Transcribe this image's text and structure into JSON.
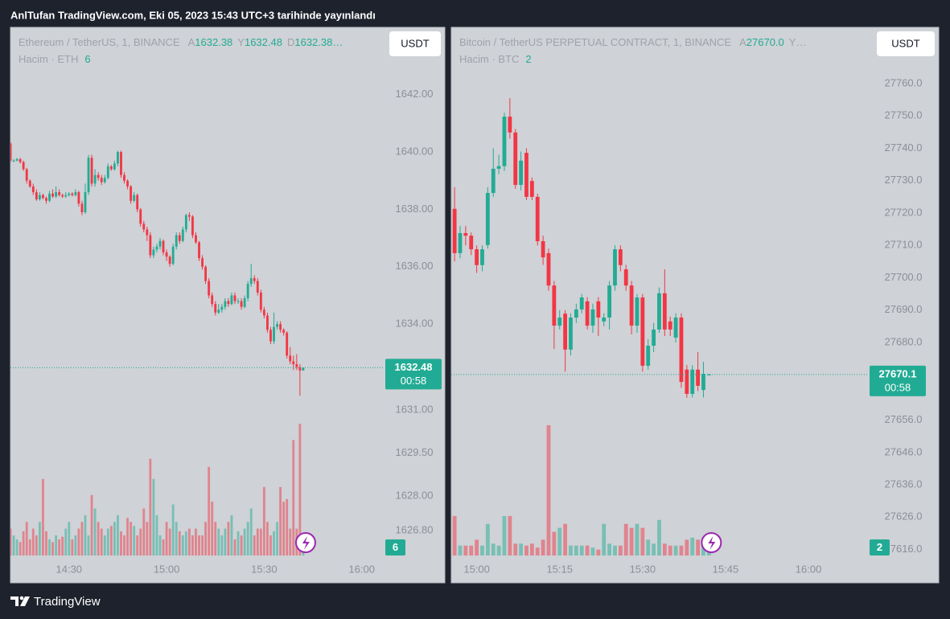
{
  "header": {
    "title": "AnlTufan TradingView.com, Eki 05, 2023 15:43 UTC+3 tarihinde yayınlandı"
  },
  "footer": {
    "brand": "TradingView"
  },
  "chart_data": [
    {
      "type": "candlestick",
      "symbol": "Ethereum / TetherUS, 1, BINANCE",
      "legend": [
        {
          "label": "A",
          "value": "1632.38"
        },
        {
          "label": "Y",
          "value": "1632.48"
        },
        {
          "label": "D",
          "value": "1632.38…"
        }
      ],
      "currency": "USDT",
      "volume_label": "Hacim · ETH",
      "countdown": "00:58",
      "last_price": 1632.48,
      "up_color": "#22ab94",
      "down_color": "#f23645",
      "ylim": [
        1625.9,
        1644.35
      ],
      "yticks": [
        {
          "value": 1642,
          "label": "1642.00"
        },
        {
          "value": 1640,
          "label": "1640.00"
        },
        {
          "value": 1638,
          "label": "1638.00"
        },
        {
          "value": 1636,
          "label": "1636.00"
        },
        {
          "value": 1634,
          "label": "1634.00"
        },
        {
          "value": 1631,
          "label": "1631.00"
        },
        {
          "value": 1629.5,
          "label": "1629.50"
        },
        {
          "value": 1628,
          "label": "1628.00"
        },
        {
          "value": 1626.8,
          "label": "1626.80"
        }
      ],
      "xlim": [
        0,
        115
      ],
      "xticks": [
        {
          "value": 18,
          "label": "14:30"
        },
        {
          "value": 48,
          "label": "15:00"
        },
        {
          "value": 78,
          "label": "15:30"
        },
        {
          "value": 108,
          "label": "16:00"
        }
      ],
      "open": [
        1640.3,
        1639.7,
        1639.7,
        1639.75,
        1639.65,
        1639.4,
        1639.0,
        1638.8,
        1638.6,
        1638.35,
        1638.5,
        1638.4,
        1638.3,
        1638.55,
        1638.45,
        1638.6,
        1638.5,
        1638.45,
        1638.5,
        1638.55,
        1638.5,
        1638.6,
        1638.2,
        1637.9,
        1638.6,
        1639.8,
        1638.9,
        1639.2,
        1639.1,
        1638.95,
        1639.1,
        1639.5,
        1639.4,
        1639.6,
        1640.0,
        1639.2,
        1639.0,
        1638.8,
        1638.3,
        1638.5,
        1638.0,
        1637.5,
        1637.3,
        1637.1,
        1636.4,
        1636.6,
        1636.7,
        1636.9,
        1636.5,
        1636.35,
        1636.1,
        1636.7,
        1637.1,
        1636.9,
        1637.3,
        1637.8,
        1637.75,
        1637.1,
        1636.85,
        1636.3,
        1636.0,
        1635.5,
        1635.0,
        1634.7,
        1634.4,
        1634.5,
        1634.6,
        1634.8,
        1634.7,
        1635.0,
        1634.8,
        1634.8,
        1634.6,
        1634.9,
        1635.4,
        1635.6,
        1635.5,
        1635.1,
        1634.5,
        1634.3,
        1633.8,
        1633.4,
        1633.9,
        1634.0,
        1633.8,
        1633.7,
        1632.9,
        1632.7,
        1632.6,
        1632.5,
        1632.38
      ],
      "high": [
        1640.35,
        1639.75,
        1639.8,
        1639.8,
        1639.7,
        1639.45,
        1639.05,
        1638.9,
        1638.7,
        1638.6,
        1638.55,
        1638.45,
        1638.65,
        1638.7,
        1638.8,
        1638.7,
        1638.55,
        1638.6,
        1638.6,
        1638.6,
        1638.7,
        1638.65,
        1638.3,
        1638.9,
        1639.9,
        1639.9,
        1639.4,
        1639.3,
        1639.2,
        1639.2,
        1639.6,
        1639.55,
        1639.7,
        1640.05,
        1640.05,
        1639.3,
        1639.05,
        1638.85,
        1638.6,
        1638.55,
        1638.05,
        1637.6,
        1637.4,
        1637.2,
        1636.7,
        1636.8,
        1637.0,
        1636.95,
        1636.6,
        1636.4,
        1636.8,
        1637.2,
        1637.2,
        1637.4,
        1637.85,
        1637.9,
        1637.8,
        1637.2,
        1636.9,
        1636.4,
        1636.05,
        1635.6,
        1635.1,
        1634.8,
        1634.7,
        1634.7,
        1634.9,
        1634.9,
        1635.1,
        1635.1,
        1634.9,
        1634.9,
        1635.0,
        1635.5,
        1636.1,
        1635.7,
        1635.6,
        1635.2,
        1634.6,
        1634.4,
        1633.9,
        1634.4,
        1634.1,
        1634.1,
        1633.85,
        1633.75,
        1633.2,
        1632.9,
        1632.95,
        1632.6,
        1632.48
      ],
      "low": [
        1639.65,
        1639.65,
        1639.68,
        1639.6,
        1639.35,
        1638.9,
        1638.75,
        1638.5,
        1638.3,
        1638.3,
        1638.35,
        1638.2,
        1638.25,
        1638.4,
        1638.4,
        1638.45,
        1638.4,
        1638.4,
        1638.45,
        1638.45,
        1638.45,
        1638.1,
        1637.8,
        1637.85,
        1638.5,
        1638.8,
        1638.8,
        1639.0,
        1638.85,
        1638.9,
        1639.05,
        1639.35,
        1639.35,
        1639.5,
        1639.1,
        1638.9,
        1638.7,
        1638.2,
        1638.25,
        1637.9,
        1637.4,
        1637.2,
        1636.9,
        1636.3,
        1636.3,
        1636.5,
        1636.6,
        1636.4,
        1636.2,
        1636.0,
        1636.05,
        1636.6,
        1636.8,
        1636.85,
        1637.2,
        1637.6,
        1637.0,
        1636.8,
        1636.2,
        1635.9,
        1635.4,
        1634.9,
        1634.6,
        1634.3,
        1634.35,
        1634.4,
        1634.5,
        1634.6,
        1634.65,
        1634.7,
        1634.7,
        1634.5,
        1634.55,
        1634.8,
        1635.3,
        1635.4,
        1635.0,
        1634.4,
        1634.2,
        1633.7,
        1633.3,
        1633.3,
        1633.8,
        1633.7,
        1633.6,
        1632.8,
        1632.6,
        1632.4,
        1632.4,
        1631.5,
        1632.38
      ],
      "close": [
        1639.7,
        1639.7,
        1639.75,
        1639.65,
        1639.4,
        1639.0,
        1638.8,
        1638.6,
        1638.35,
        1638.5,
        1638.4,
        1638.3,
        1638.55,
        1638.45,
        1638.6,
        1638.5,
        1638.45,
        1638.5,
        1638.55,
        1638.5,
        1638.6,
        1638.2,
        1637.9,
        1638.6,
        1639.8,
        1638.9,
        1639.2,
        1639.1,
        1638.95,
        1639.1,
        1639.5,
        1639.4,
        1639.6,
        1640.0,
        1639.2,
        1639.0,
        1638.8,
        1638.3,
        1638.5,
        1638.0,
        1637.5,
        1637.3,
        1637.1,
        1636.4,
        1636.6,
        1636.7,
        1636.9,
        1636.5,
        1636.35,
        1636.1,
        1636.7,
        1637.1,
        1636.9,
        1637.3,
        1637.8,
        1637.75,
        1637.1,
        1636.85,
        1636.3,
        1636.0,
        1635.5,
        1635.0,
        1634.7,
        1634.4,
        1634.5,
        1634.6,
        1634.8,
        1634.7,
        1635.0,
        1634.8,
        1634.8,
        1634.6,
        1634.9,
        1635.4,
        1635.6,
        1635.5,
        1635.1,
        1634.5,
        1634.3,
        1633.8,
        1633.4,
        1633.9,
        1634.0,
        1633.8,
        1633.7,
        1632.9,
        1632.7,
        1632.6,
        1632.5,
        1632.38,
        1632.48
      ],
      "volume": [
        20,
        15,
        12,
        10,
        18,
        25,
        12,
        20,
        15,
        25,
        57,
        18,
        12,
        10,
        15,
        12,
        14,
        20,
        25,
        12,
        15,
        20,
        25,
        30,
        15,
        45,
        35,
        25,
        20,
        15,
        20,
        22,
        25,
        30,
        18,
        15,
        28,
        25,
        22,
        15,
        20,
        35,
        25,
        72,
        57,
        30,
        15,
        12,
        25,
        20,
        38,
        25,
        18,
        15,
        18,
        20,
        15,
        20,
        15,
        15,
        25,
        66,
        40,
        25,
        20,
        15,
        20,
        25,
        30,
        12,
        18,
        15,
        20,
        25,
        35,
        15,
        20,
        20,
        51,
        25,
        15,
        18,
        25,
        51,
        40,
        42,
        20,
        86,
        20,
        98,
        6
      ],
      "volume_lim": [
        0,
        100
      ]
    },
    {
      "type": "candlestick",
      "symbol": "Bitcoin / TetherUS PERPETUAL CONTRACT, 1, BINANCE",
      "legend": [
        {
          "label": "A",
          "value": "27670.0"
        },
        {
          "label": "Y…"
        }
      ],
      "currency": "USDT",
      "volume_label": "Hacim · BTC",
      "countdown": "00:58",
      "last_price": 27670.1,
      "up_color": "#22ab94",
      "down_color": "#f23645",
      "ylim": [
        27613.9,
        27777.4
      ],
      "yticks": [
        {
          "value": 27760,
          "label": "27760.0"
        },
        {
          "value": 27750,
          "label": "27750.0"
        },
        {
          "value": 27740,
          "label": "27740.0"
        },
        {
          "value": 27730,
          "label": "27730.0"
        },
        {
          "value": 27720,
          "label": "27720.0"
        },
        {
          "value": 27710,
          "label": "27710.0"
        },
        {
          "value": 27700,
          "label": "27700.0"
        },
        {
          "value": 27690,
          "label": "27690.0"
        },
        {
          "value": 27680,
          "label": "27680.0"
        },
        {
          "value": 27656,
          "label": "27656.0"
        },
        {
          "value": 27646,
          "label": "27646.0"
        },
        {
          "value": 27636,
          "label": "27636.0"
        },
        {
          "value": 27626,
          "label": "27626.0"
        },
        {
          "value": 27616,
          "label": "27616.0"
        }
      ],
      "xlim": [
        -0.6,
        74.9
      ],
      "xticks": [
        {
          "value": 4,
          "label": "15:00"
        },
        {
          "value": 19,
          "label": "15:15"
        },
        {
          "value": 34,
          "label": "15:30"
        },
        {
          "value": 49,
          "label": "15:45"
        },
        {
          "value": 64,
          "label": "16:00"
        }
      ],
      "open": [
        27721.3,
        27707.6,
        27713.8,
        27713.0,
        27708.8,
        27703.9,
        27710.1,
        27726.2,
        27733.7,
        27734.5,
        27749.8,
        27744.9,
        27728.7,
        27738.6,
        27729.9,
        27725.0,
        27711.3,
        27707.6,
        27697.6,
        27685.2,
        27688.9,
        27677.8,
        27687.7,
        27690.2,
        27692.7,
        27685.2,
        27692.7,
        27686.5,
        27687.7,
        27697.6,
        27708.8,
        27702.6,
        27697.6,
        27685.2,
        27693.9,
        27672.8,
        27679.0,
        27684.0,
        27695.2,
        27686.5,
        27681.5,
        27687.7,
        27671.6,
        27664.1,
        27671.6,
        27665.3,
        27670.0
      ],
      "high": [
        27728.0,
        27716,
        27716,
        27714,
        27710,
        27710,
        27728,
        27740,
        27738,
        27751,
        27755.5,
        27746,
        27739,
        27740,
        27731,
        27726,
        27713,
        27709,
        27699,
        27690,
        27690,
        27689,
        27692,
        27695,
        27694,
        27692,
        27694,
        27689,
        27699,
        27710,
        27710,
        27704,
        27699,
        27695,
        27695,
        27681,
        27686,
        27697,
        27702.6,
        27688,
        27689,
        27689,
        27673,
        27673,
        27677,
        27674,
        27670.3
      ],
      "low": [
        27705.0,
        27706,
        27710,
        27707,
        27701.5,
        27702,
        27709,
        27725,
        27732,
        27733,
        27743,
        27727.5,
        27727,
        27724,
        27724,
        27710,
        27704,
        27696,
        27678,
        27684,
        27671,
        27676,
        27686,
        27689,
        27684,
        27683,
        27682,
        27685,
        27684,
        27696,
        27702,
        27696,
        27682.5,
        27683,
        27671,
        27671.6,
        27677,
        27683,
        27682,
        27682,
        27680,
        27666,
        27662.9,
        27663,
        27665,
        27663,
        27669.8
      ],
      "close": [
        27707.6,
        27713.8,
        27713.0,
        27708.8,
        27703.9,
        27708.8,
        27726.2,
        27733.7,
        27734.5,
        27749.8,
        27744.9,
        27728.7,
        27736.2,
        27725.0,
        27725.0,
        27711.3,
        27706.3,
        27697.6,
        27685.2,
        27687.7,
        27677.8,
        27687.7,
        27690.2,
        27693.9,
        27685.2,
        27690.2,
        27687.7,
        27687.7,
        27697.6,
        27708.8,
        27703.9,
        27697.6,
        27685.2,
        27693.9,
        27672.8,
        27679.0,
        27684.0,
        27695.2,
        27684.0,
        27684.0,
        27687.7,
        27667.8,
        27664.1,
        27671.6,
        27666.6,
        27670.3,
        27670.1
      ],
      "volume": [
        10,
        2.5,
        2.5,
        2.5,
        4,
        2.5,
        8,
        3,
        2.5,
        10,
        10,
        3,
        3,
        2.5,
        3,
        2,
        4,
        33,
        6,
        7,
        8,
        2.5,
        2.5,
        2.5,
        2.5,
        2,
        1.5,
        8,
        3,
        2.5,
        2.5,
        8,
        7,
        8,
        7,
        4,
        3,
        9,
        3,
        2.5,
        2.5,
        2.5,
        4,
        4.5,
        4,
        3,
        2
      ],
      "volume_lim": [
        0,
        34
      ]
    }
  ]
}
